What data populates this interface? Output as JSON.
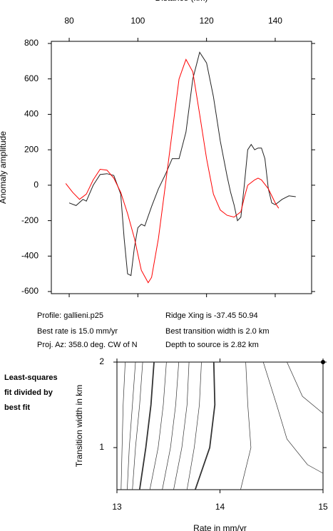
{
  "chart_data": [
    {
      "type": "line",
      "xlabel": "Distance (km)",
      "ylabel": "Anomaly amplitude",
      "xlim": [
        74.8,
        150.6
      ],
      "ylim": [
        -612,
        812
      ],
      "xticks": [
        80,
        100,
        120,
        140
      ],
      "yticks": [
        -600,
        -400,
        -200,
        0,
        200,
        400,
        600,
        800
      ],
      "series": [
        {
          "color": "#222222",
          "x": [
            80,
            82,
            84,
            85,
            87,
            89,
            91,
            93,
            95,
            96,
            97,
            98,
            99,
            100,
            101,
            102,
            104,
            106,
            108,
            110,
            112,
            114,
            116,
            118,
            120,
            122,
            124,
            126,
            127,
            128,
            129,
            130,
            131,
            132,
            133,
            134,
            135,
            136,
            137,
            138,
            139,
            140,
            142,
            144,
            146
          ],
          "values": [
            -100,
            -115,
            -80,
            -90,
            0,
            60,
            65,
            55,
            -50,
            -300,
            -500,
            -510,
            -350,
            -240,
            -220,
            -230,
            -120,
            -20,
            60,
            150,
            150,
            300,
            600,
            750,
            690,
            500,
            250,
            50,
            -40,
            -110,
            -200,
            -180,
            0,
            200,
            230,
            200,
            210,
            210,
            150,
            -20,
            -100,
            -110,
            -80,
            -60,
            -65
          ]
        },
        {
          "color": "#ff0000",
          "x": [
            79,
            81,
            83,
            85,
            87,
            89,
            91,
            93,
            95,
            97,
            99,
            101,
            103,
            104,
            106,
            108,
            110,
            112,
            114,
            116,
            118,
            120,
            122,
            124,
            126,
            128,
            130,
            131,
            132,
            134,
            135,
            136,
            138,
            140,
            141
          ],
          "values": [
            10,
            -40,
            -80,
            -50,
            30,
            90,
            85,
            40,
            -40,
            -160,
            -300,
            -480,
            -550,
            -520,
            -300,
            0,
            300,
            600,
            710,
            640,
            400,
            150,
            -50,
            -140,
            -170,
            -180,
            -150,
            -70,
            0,
            30,
            40,
            30,
            -20,
            -100,
            -130
          ]
        }
      ],
      "annotations": [
        "Profile: gallieni.p25",
        "Ridge Xing is -37.45 50.94",
        "Best rate is 15.0 mm/yr",
        "Best transition width is 2.0 km",
        "Proj. Az: 358.0 deg. CW of N",
        "Depth to source is   2.82 km"
      ]
    },
    {
      "type": "contour",
      "xlabel": "Rate in mm/yr",
      "ylabel": "Transition width in km",
      "xlim": [
        13,
        15
      ],
      "ylim": [
        0.508,
        2
      ],
      "xticks": [
        13,
        14,
        15
      ],
      "yticks": [
        1,
        2
      ],
      "color": "#333333",
      "contours": [
        {
          "x": [
            13.08,
            13.06,
            13.05,
            13.04
          ],
          "y": [
            2,
            1.5,
            1,
            0.508
          ]
        },
        {
          "x": [
            13.18,
            13.15,
            13.12,
            13.1
          ],
          "y": [
            2,
            1.5,
            1,
            0.508
          ]
        },
        {
          "x": [
            13.25,
            13.22,
            13.18,
            13.15
          ],
          "y": [
            2,
            1.5,
            1,
            0.508
          ]
        },
        {
          "x": [
            13.36,
            13.33,
            13.28,
            13.22
          ],
          "y": [
            2,
            1.5,
            1,
            0.508
          ],
          "thick": true
        },
        {
          "x": [
            13.48,
            13.45,
            13.4,
            13.32
          ],
          "y": [
            2,
            1.5,
            1,
            0.508
          ]
        },
        {
          "x": [
            13.6,
            13.57,
            13.52,
            13.44
          ],
          "y": [
            2,
            1.5,
            1,
            0.508
          ]
        },
        {
          "x": [
            13.7,
            13.68,
            13.63,
            13.55
          ],
          "y": [
            2,
            1.5,
            1,
            0.508
          ]
        },
        {
          "x": [
            13.82,
            13.8,
            13.75,
            13.68
          ],
          "y": [
            2,
            1.5,
            1,
            0.508
          ]
        },
        {
          "x": [
            13.94,
            13.95,
            13.9,
            13.76
          ],
          "y": [
            2,
            1.5,
            1,
            0.508
          ],
          "thick": true
        },
        {
          "x": [
            14.25,
            14.27,
            14.3,
            14.2
          ],
          "y": [
            2,
            1.5,
            1,
            0.508
          ]
        },
        {
          "x": [
            14.42,
            14.55,
            14.65,
            14.85,
            15
          ],
          "y": [
            2,
            1.5,
            1.1,
            0.8,
            0.7
          ]
        },
        {
          "x": [
            14.65,
            14.8,
            15
          ],
          "y": [
            2,
            1.6,
            1.4
          ]
        }
      ],
      "best_fit": {
        "x": 15,
        "y": 2
      },
      "annotations": [
        "Least-squares",
        "fit divided by",
        "best fit"
      ]
    }
  ]
}
